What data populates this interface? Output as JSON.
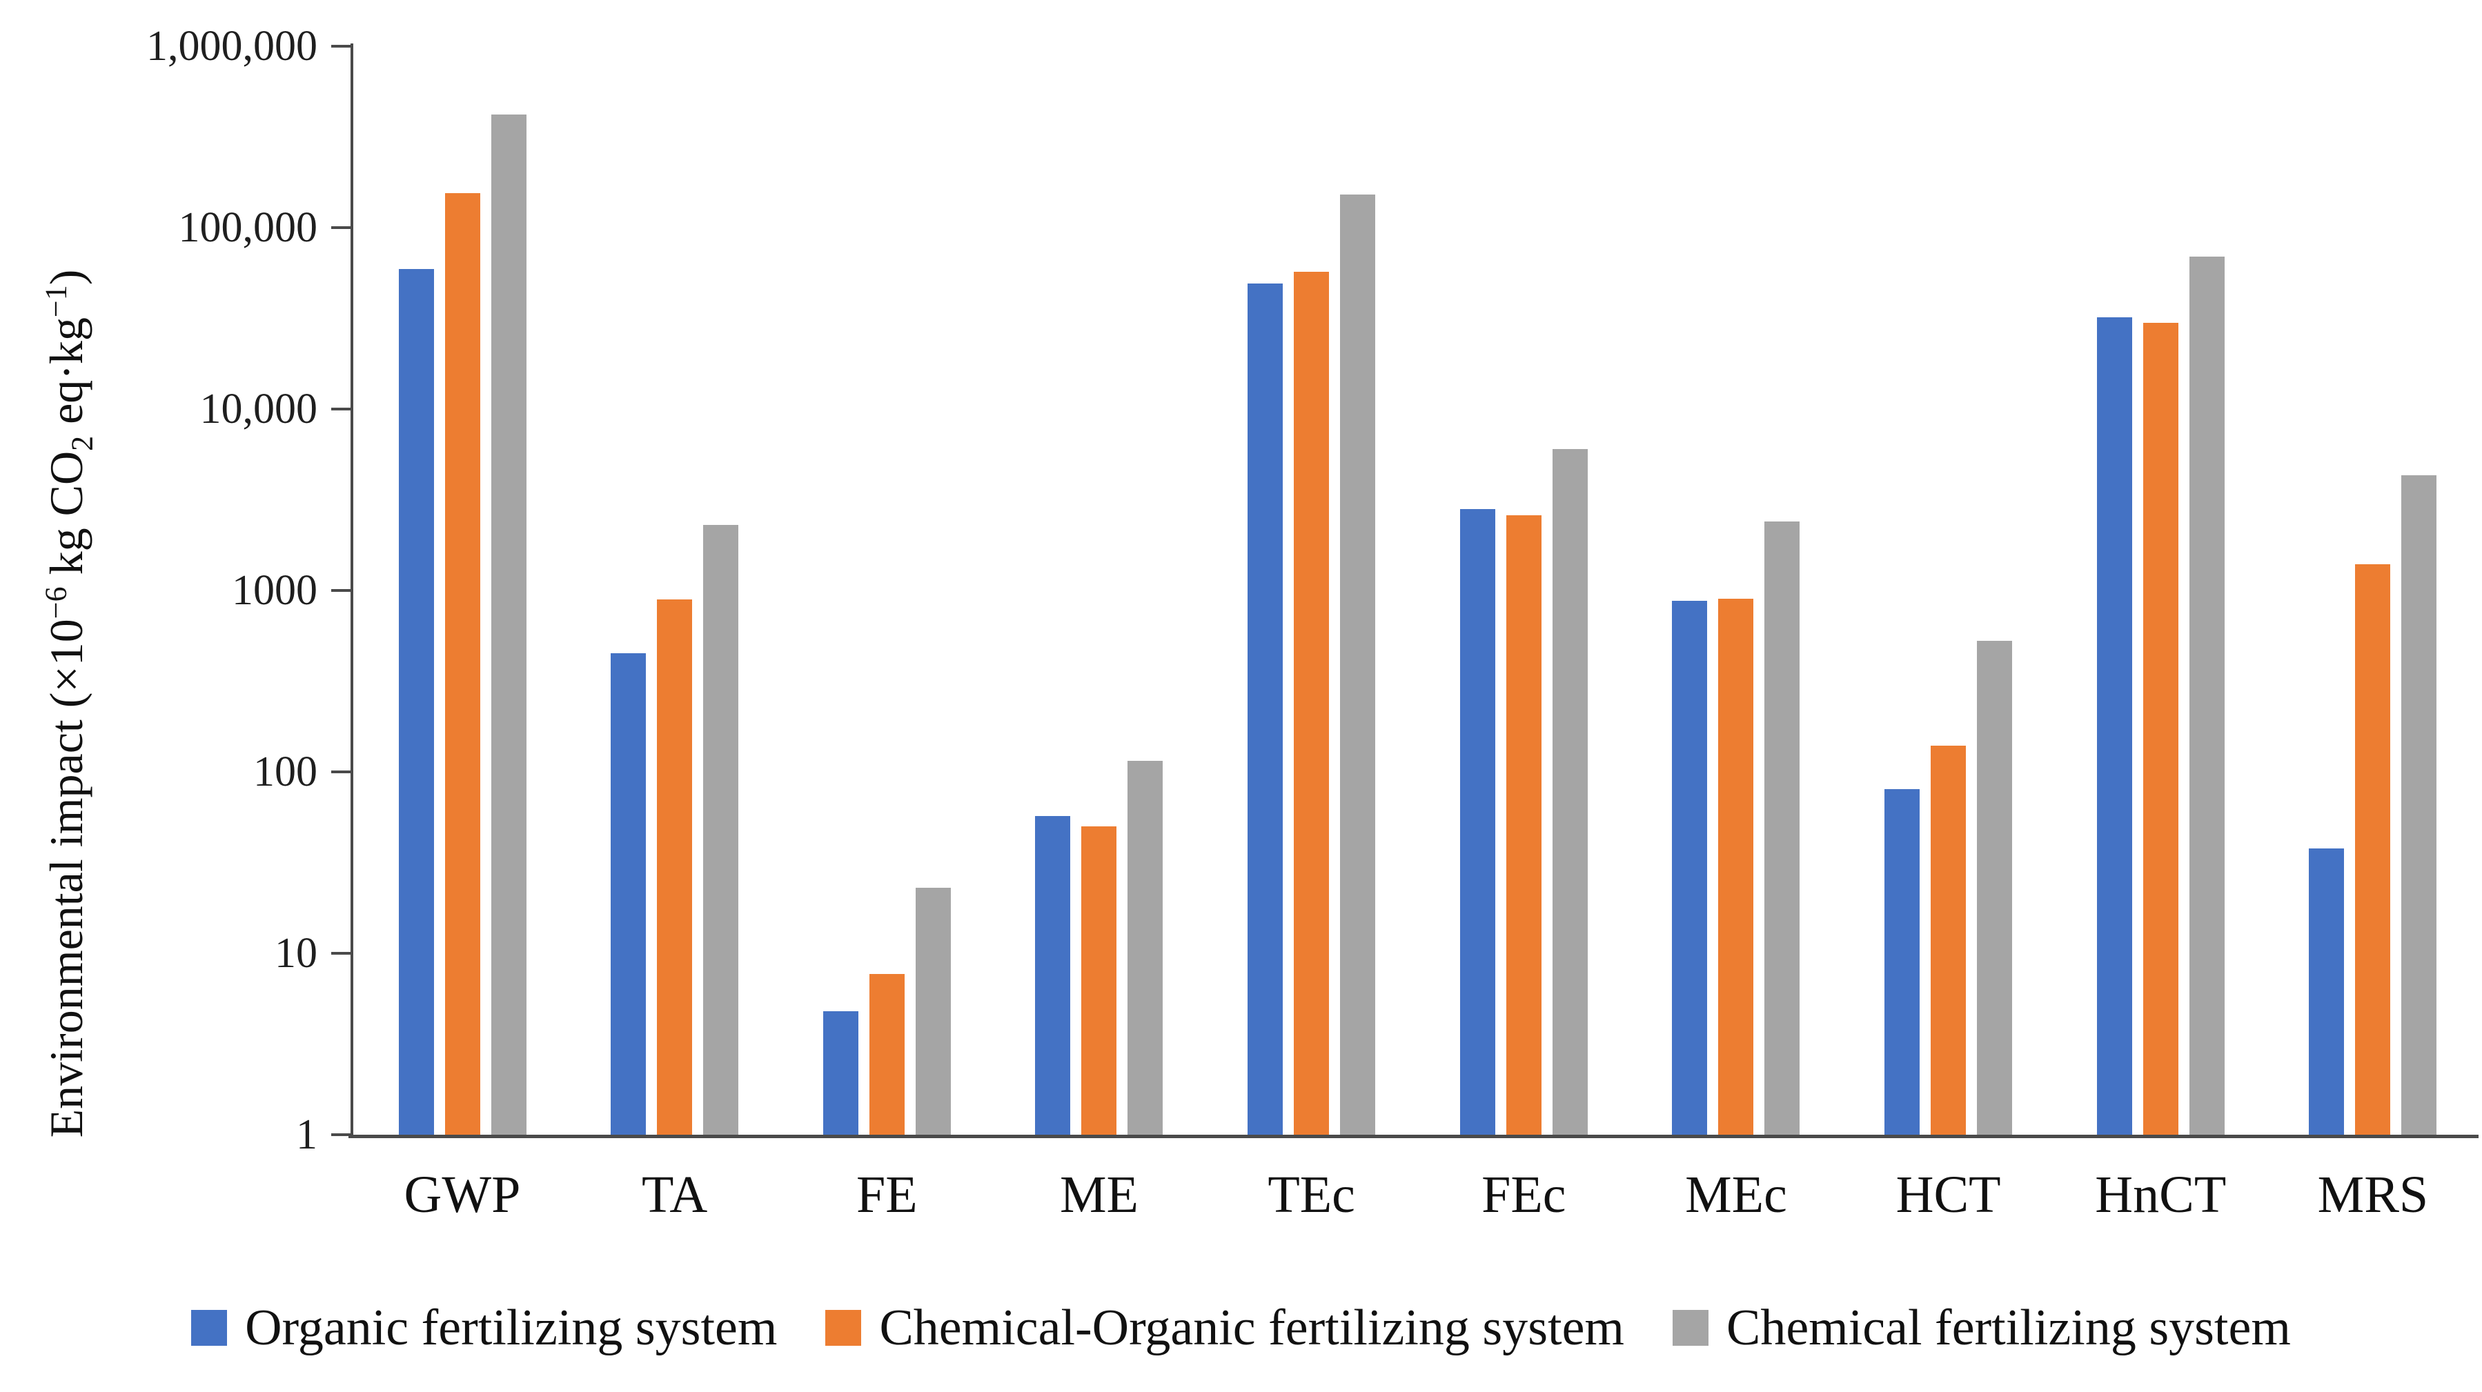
{
  "chart_data": {
    "type": "bar",
    "title": "",
    "ylabel_text": "Environmental impact (×10⁻⁶ kg CO₂ eq·kg⁻¹)",
    "ylabel_parts": {
      "p1": "Environmental impact (×10",
      "sup1": "−6",
      "p2": " kg CO",
      "sub1": "2",
      "p3": " eq·kg",
      "sup2": "−1",
      "p4": ")"
    },
    "categories": [
      "GWP",
      "TA",
      "FE",
      "ME",
      "TEc",
      "FEc",
      "MEc",
      "HCT",
      "HnCT",
      "MRS"
    ],
    "series": [
      {
        "name": "Organic fertilizing system",
        "color": "#4472C4",
        "values": [
          59000,
          450,
          4.8,
          57,
          49000,
          2800,
          880,
          80,
          32000,
          38
        ]
      },
      {
        "name": "Chemical-Organic fertilizing system",
        "color": "#ED7D31",
        "values": [
          155000,
          890,
          7.7,
          50,
          57000,
          2600,
          900,
          140,
          30000,
          1400
        ]
      },
      {
        "name": "Chemical fertilizing system",
        "color": "#A5A5A5",
        "values": [
          420000,
          2300,
          23,
          115,
          152000,
          6000,
          2400,
          530,
          69000,
          4300
        ]
      }
    ],
    "y_axis": {
      "scale": "log",
      "min": 1,
      "max": 1000000,
      "tick_values": [
        1000000,
        100000,
        10000,
        1000,
        100,
        10,
        1
      ],
      "tick_labels": [
        "1,000,000",
        "100,000",
        "10,000",
        "1000",
        "100",
        "10",
        "1"
      ]
    },
    "xlabel": "",
    "grid": false,
    "legend_position": "bottom"
  }
}
